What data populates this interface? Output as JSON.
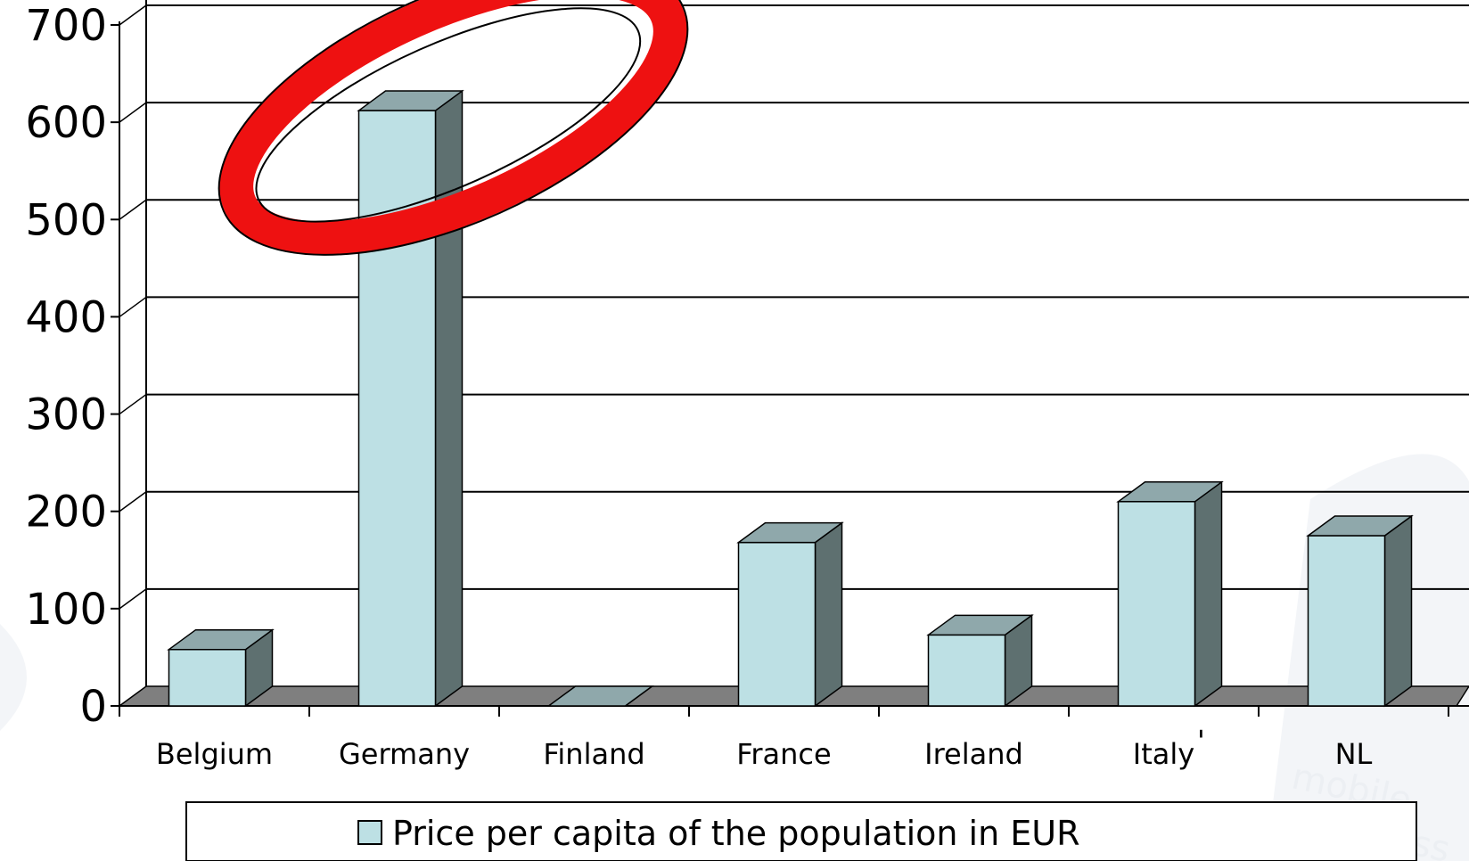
{
  "chart_data": {
    "type": "bar",
    "title": "",
    "xlabel": "",
    "ylabel": "",
    "categories": [
      "Belgium",
      "Germany",
      "Finland",
      "France",
      "Ireland",
      "Italy",
      "NL"
    ],
    "series": [
      {
        "name": "Price per capita of the population in EUR",
        "values": [
          58,
          612,
          0,
          168,
          73,
          210,
          175
        ]
      }
    ],
    "ylim": [
      0,
      700
    ],
    "yticks": [
      "0",
      "100",
      "200",
      "300",
      "400",
      "500",
      "600",
      "700"
    ],
    "grid": true,
    "three_d": true,
    "legend_position": "bottom",
    "highlight": {
      "shape": "ellipse",
      "category": "Germany",
      "color": "#ee1111"
    },
    "stray_mark": "'",
    "watermark": [
      "mobile",
      "business"
    ],
    "colors": {
      "bar_front": "#bde0e4",
      "bar_top": "#8fa8ab",
      "bar_side": "#5e7070",
      "floor": "#7f7f7f",
      "grid": "#000000",
      "highlight": "#ee1111"
    }
  }
}
